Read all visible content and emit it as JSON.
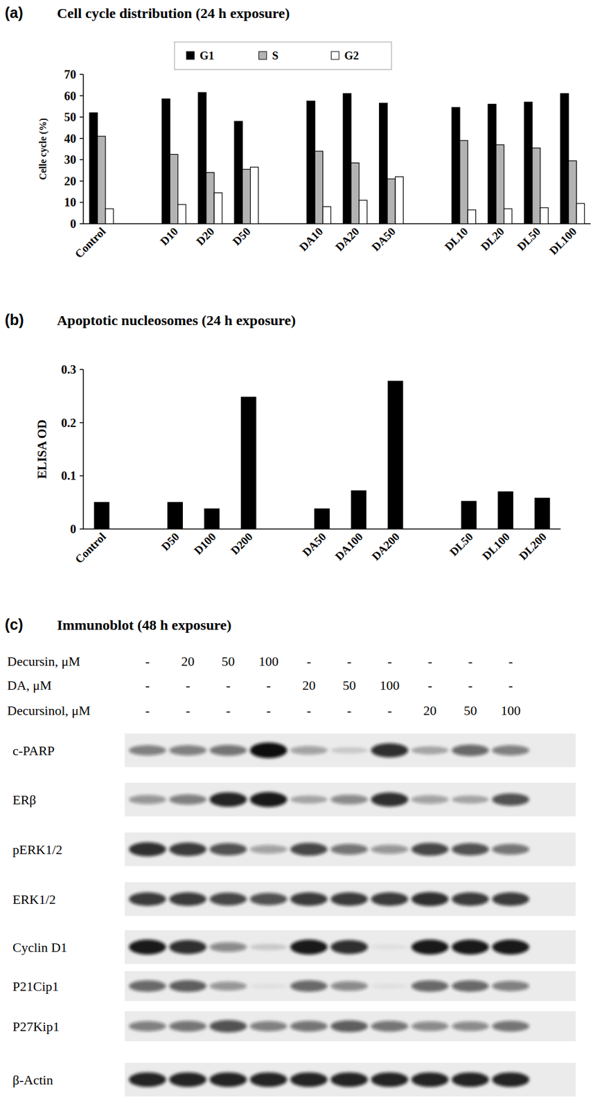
{
  "chart_data": [
    {
      "type": "bar",
      "panel": "(a)",
      "title": "Cell cycle distribution (24 h exposure)",
      "y_label": "Celle cycle (%)",
      "categories": [
        "Control",
        null,
        "D10",
        "D20",
        "D50",
        null,
        "DA10",
        "DA20",
        "DA50",
        null,
        "DL10",
        "DL20",
        "DL50",
        "DL100"
      ],
      "series": [
        {
          "name": "G1",
          "color": "#000000",
          "values": [
            52,
            null,
            58.5,
            61.5,
            48,
            null,
            57.5,
            61,
            56.5,
            null,
            54.5,
            56,
            57,
            61
          ]
        },
        {
          "name": "S",
          "color": "#b3b3b3",
          "values": [
            41,
            null,
            32.5,
            24,
            25.5,
            null,
            34,
            28.5,
            21,
            null,
            39,
            37,
            35.5,
            29.5
          ]
        },
        {
          "name": "G2",
          "color": "#ffffff",
          "values": [
            7,
            null,
            9,
            14.5,
            26.5,
            null,
            8,
            11,
            22,
            null,
            6.5,
            7,
            7.5,
            9.5
          ]
        }
      ],
      "ylim": [
        0,
        70
      ],
      "yticks": [
        0,
        10,
        20,
        30,
        40,
        50,
        60,
        70
      ],
      "grid": false,
      "legend": "top"
    },
    {
      "type": "bar",
      "panel": "(b)",
      "title": "Apoptotic nucleosomes (24 h exposure)",
      "y_label": "ELISA OD",
      "categories": [
        "Control",
        null,
        "D50",
        "D100",
        "D200",
        null,
        "DA50",
        "DA100",
        "DA200",
        null,
        "DL50",
        "DL100",
        "DL200"
      ],
      "series": [
        {
          "name": "ELISA OD",
          "color": "#000000",
          "values": [
            0.05,
            null,
            0.05,
            0.038,
            0.248,
            null,
            0.038,
            0.072,
            0.278,
            null,
            0.052,
            0.07,
            0.058
          ]
        }
      ],
      "ylim": [
        0,
        0.3
      ],
      "yticks": [
        0,
        0.1,
        0.2,
        0.3
      ],
      "grid": false
    }
  ],
  "immunoblot": {
    "panel": "(c)",
    "title": "Immunoblot (48 h exposure)",
    "treatments": [
      {
        "label": "Decursin, μM",
        "lanes": [
          "-",
          "20",
          "50",
          "100",
          "-",
          "-",
          "-",
          "-",
          "-",
          "-"
        ]
      },
      {
        "label": "DA, μM",
        "lanes": [
          "-",
          "-",
          "-",
          "-",
          "20",
          "50",
          "100",
          "-",
          "-",
          "-"
        ]
      },
      {
        "label": "Decursinol, μM",
        "lanes": [
          "-",
          "-",
          "-",
          "-",
          "-",
          "-",
          "-",
          "20",
          "50",
          "100"
        ]
      }
    ],
    "proteins": [
      {
        "name": "c-PARP",
        "bands": [
          0.5,
          0.5,
          0.55,
          1,
          0.35,
          0.15,
          0.85,
          0.3,
          0.6,
          0.5
        ]
      },
      {
        "name": "ERβ",
        "bands": [
          0.4,
          0.5,
          0.9,
          0.95,
          0.3,
          0.45,
          0.85,
          0.35,
          0.3,
          0.7
        ]
      },
      {
        "name": "pERK1/2",
        "bands": [
          0.85,
          0.8,
          0.7,
          0.35,
          0.75,
          0.55,
          0.4,
          0.75,
          0.7,
          0.55
        ]
      },
      {
        "name": "ERK1/2",
        "bands": [
          0.8,
          0.8,
          0.75,
          0.7,
          0.8,
          0.8,
          0.8,
          0.85,
          0.8,
          0.8
        ]
      },
      {
        "name": "Cyclin D1",
        "bands": [
          0.95,
          0.85,
          0.45,
          0.15,
          0.95,
          0.85,
          0.05,
          0.95,
          0.95,
          0.95
        ]
      },
      {
        "name": "P21Cip1",
        "bands": [
          0.6,
          0.65,
          0.4,
          0.05,
          0.6,
          0.45,
          0.05,
          0.6,
          0.6,
          0.5
        ]
      },
      {
        "name": "P27Kip1",
        "bands": [
          0.5,
          0.55,
          0.7,
          0.5,
          0.55,
          0.65,
          0.55,
          0.45,
          0.45,
          0.55
        ]
      },
      {
        "name": "β-Actin",
        "bands": [
          0.9,
          0.9,
          0.9,
          0.9,
          0.9,
          0.9,
          0.9,
          0.9,
          0.9,
          0.9
        ]
      }
    ]
  }
}
